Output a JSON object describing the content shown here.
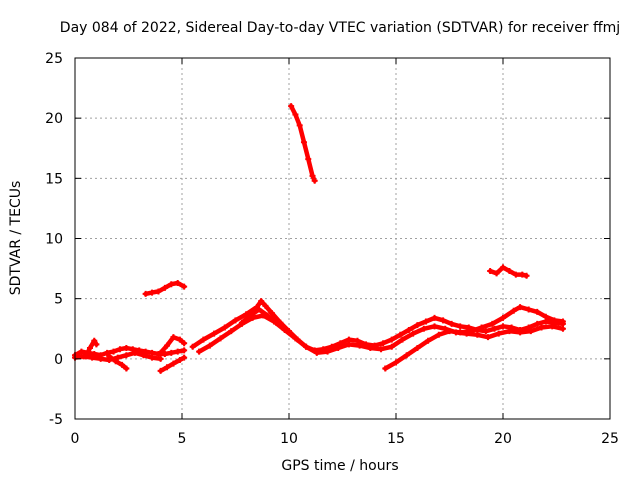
{
  "chart_data": {
    "type": "scatter",
    "title": "Day 084 of 2022, Sidereal Day-to-day VTEC variation (SDTVAR) for receiver ffmj",
    "xlabel": "GPS time / hours",
    "ylabel": "SDTVAR / TECUs",
    "xlim": [
      0,
      25
    ],
    "ylim": [
      -5,
      25
    ],
    "xticks": [
      "0",
      "5",
      "10",
      "15",
      "20",
      "25"
    ],
    "yticks": [
      "-5",
      "0",
      "5",
      "10",
      "15",
      "20",
      "25"
    ],
    "grid": true,
    "color": "#ff0000",
    "series": [
      {
        "name": "baseline-early",
        "points": [
          [
            0.0,
            0.3
          ],
          [
            0.3,
            0.6
          ],
          [
            0.6,
            0.5
          ],
          [
            0.9,
            0.4
          ],
          [
            1.2,
            0.3
          ],
          [
            1.5,
            0.5
          ],
          [
            1.8,
            0.6
          ],
          [
            2.1,
            0.8
          ],
          [
            2.4,
            0.9
          ],
          [
            2.7,
            0.8
          ],
          [
            3.0,
            0.7
          ],
          [
            3.3,
            0.6
          ],
          [
            3.6,
            0.5
          ],
          [
            3.9,
            0.4
          ],
          [
            4.2,
            0.4
          ],
          [
            4.5,
            0.5
          ],
          [
            4.8,
            0.6
          ],
          [
            5.1,
            0.7
          ]
        ]
      },
      {
        "name": "baseline-early-lower",
        "points": [
          [
            0.0,
            0.1
          ],
          [
            0.4,
            0.2
          ],
          [
            0.8,
            0.1
          ],
          [
            1.2,
            0.0
          ],
          [
            1.6,
            -0.1
          ],
          [
            2.0,
            0.1
          ],
          [
            2.4,
            0.3
          ],
          [
            2.8,
            0.5
          ],
          [
            3.2,
            0.3
          ],
          [
            3.6,
            0.1
          ],
          [
            4.0,
            0.0
          ]
        ]
      },
      {
        "name": "dip-segment-a",
        "points": [
          [
            1.6,
            0.2
          ],
          [
            1.9,
            -0.2
          ],
          [
            2.2,
            -0.5
          ],
          [
            2.4,
            -0.8
          ]
        ]
      },
      {
        "name": "dip-segment-b",
        "points": [
          [
            4.0,
            -1.0
          ],
          [
            4.3,
            -0.7
          ],
          [
            4.6,
            -0.4
          ],
          [
            4.9,
            -0.1
          ],
          [
            5.1,
            0.1
          ]
        ]
      },
      {
        "name": "small-hump",
        "points": [
          [
            4.0,
            0.5
          ],
          [
            4.3,
            1.1
          ],
          [
            4.6,
            1.8
          ],
          [
            4.9,
            1.6
          ],
          [
            5.1,
            1.3
          ]
        ]
      },
      {
        "name": "start-spike",
        "points": [
          [
            0.5,
            0.2
          ],
          [
            0.7,
            0.9
          ],
          [
            0.9,
            1.5
          ],
          [
            1.0,
            1.2
          ]
        ]
      },
      {
        "name": "elevated-segment-a",
        "points": [
          [
            3.3,
            5.4
          ],
          [
            3.6,
            5.5
          ],
          [
            3.9,
            5.6
          ],
          [
            4.2,
            5.9
          ],
          [
            4.5,
            6.2
          ],
          [
            4.8,
            6.3
          ],
          [
            5.1,
            6.0
          ]
        ]
      },
      {
        "name": "main-ridge",
        "points": [
          [
            5.5,
            1.0
          ],
          [
            6.0,
            1.6
          ],
          [
            6.5,
            2.1
          ],
          [
            7.0,
            2.6
          ],
          [
            7.5,
            3.2
          ],
          [
            8.0,
            3.7
          ],
          [
            8.5,
            4.3
          ],
          [
            8.7,
            4.8
          ],
          [
            8.9,
            4.4
          ],
          [
            9.2,
            3.8
          ],
          [
            9.6,
            3.0
          ],
          [
            10.0,
            2.3
          ],
          [
            10.4,
            1.6
          ],
          [
            10.8,
            1.0
          ],
          [
            11.2,
            0.7
          ],
          [
            11.6,
            0.8
          ],
          [
            12.0,
            1.0
          ],
          [
            12.4,
            1.3
          ],
          [
            12.8,
            1.6
          ],
          [
            13.2,
            1.5
          ],
          [
            13.6,
            1.2
          ],
          [
            14.0,
            1.1
          ],
          [
            14.4,
            1.3
          ],
          [
            14.8,
            1.6
          ],
          [
            15.2,
            2.0
          ],
          [
            15.6,
            2.4
          ],
          [
            16.0,
            2.8
          ],
          [
            16.4,
            3.1
          ],
          [
            16.8,
            3.4
          ],
          [
            17.2,
            3.2
          ],
          [
            17.6,
            2.9
          ],
          [
            18.0,
            2.7
          ],
          [
            18.4,
            2.6
          ],
          [
            18.8,
            2.4
          ],
          [
            19.2,
            2.3
          ],
          [
            19.6,
            2.5
          ],
          [
            20.0,
            2.7
          ],
          [
            20.4,
            2.6
          ],
          [
            20.8,
            2.4
          ],
          [
            21.2,
            2.6
          ],
          [
            21.6,
            2.9
          ],
          [
            22.0,
            3.1
          ],
          [
            22.4,
            3.0
          ],
          [
            22.8,
            2.9
          ]
        ]
      },
      {
        "name": "ridge-lower-band",
        "points": [
          [
            5.8,
            0.6
          ],
          [
            6.3,
            1.1
          ],
          [
            6.8,
            1.7
          ],
          [
            7.3,
            2.3
          ],
          [
            7.8,
            2.9
          ],
          [
            8.3,
            3.4
          ],
          [
            8.8,
            3.6
          ],
          [
            9.3,
            3.1
          ],
          [
            9.8,
            2.4
          ],
          [
            10.3,
            1.7
          ],
          [
            10.8,
            1.0
          ],
          [
            11.3,
            0.5
          ],
          [
            11.8,
            0.6
          ],
          [
            12.3,
            0.9
          ],
          [
            12.8,
            1.2
          ],
          [
            13.3,
            1.1
          ],
          [
            13.8,
            0.9
          ],
          [
            14.3,
            0.8
          ],
          [
            14.8,
            1.0
          ],
          [
            15.3,
            1.6
          ],
          [
            15.8,
            2.1
          ],
          [
            16.3,
            2.5
          ],
          [
            16.8,
            2.7
          ],
          [
            17.3,
            2.5
          ],
          [
            17.8,
            2.2
          ],
          [
            18.3,
            2.1
          ],
          [
            18.8,
            2.0
          ],
          [
            19.3,
            1.8
          ],
          [
            19.8,
            2.1
          ],
          [
            20.3,
            2.3
          ],
          [
            20.8,
            2.2
          ],
          [
            21.3,
            2.3
          ],
          [
            21.8,
            2.6
          ],
          [
            22.3,
            2.7
          ],
          [
            22.8,
            2.5
          ]
        ]
      },
      {
        "name": "ridge-upper-band",
        "points": [
          [
            7.8,
            3.0
          ],
          [
            8.2,
            3.6
          ],
          [
            8.6,
            4.1
          ],
          [
            9.0,
            3.6
          ],
          [
            9.4,
            3.0
          ]
        ]
      },
      {
        "name": "late-rise",
        "points": [
          [
            14.5,
            -0.8
          ],
          [
            15.0,
            -0.3
          ],
          [
            15.5,
            0.3
          ],
          [
            16.0,
            0.9
          ],
          [
            16.5,
            1.5
          ],
          [
            17.0,
            2.0
          ],
          [
            17.5,
            2.3
          ],
          [
            18.0,
            2.2
          ],
          [
            18.5,
            2.3
          ],
          [
            19.0,
            2.6
          ],
          [
            19.5,
            2.9
          ],
          [
            20.0,
            3.4
          ],
          [
            20.5,
            4.0
          ],
          [
            20.8,
            4.3
          ],
          [
            21.2,
            4.1
          ],
          [
            21.6,
            3.9
          ],
          [
            22.0,
            3.5
          ],
          [
            22.4,
            3.2
          ],
          [
            22.8,
            3.1
          ]
        ]
      },
      {
        "name": "steep-decline",
        "points": [
          [
            10.1,
            21.0
          ],
          [
            10.3,
            20.3
          ],
          [
            10.5,
            19.4
          ],
          [
            10.7,
            18.0
          ],
          [
            10.9,
            16.6
          ],
          [
            11.1,
            15.2
          ],
          [
            11.2,
            14.8
          ]
        ]
      },
      {
        "name": "elevated-segment-b",
        "points": [
          [
            19.4,
            7.3
          ],
          [
            19.7,
            7.1
          ],
          [
            20.0,
            7.6
          ],
          [
            20.3,
            7.3
          ],
          [
            20.6,
            7.0
          ],
          [
            20.9,
            7.0
          ],
          [
            21.1,
            6.9
          ]
        ]
      }
    ]
  }
}
